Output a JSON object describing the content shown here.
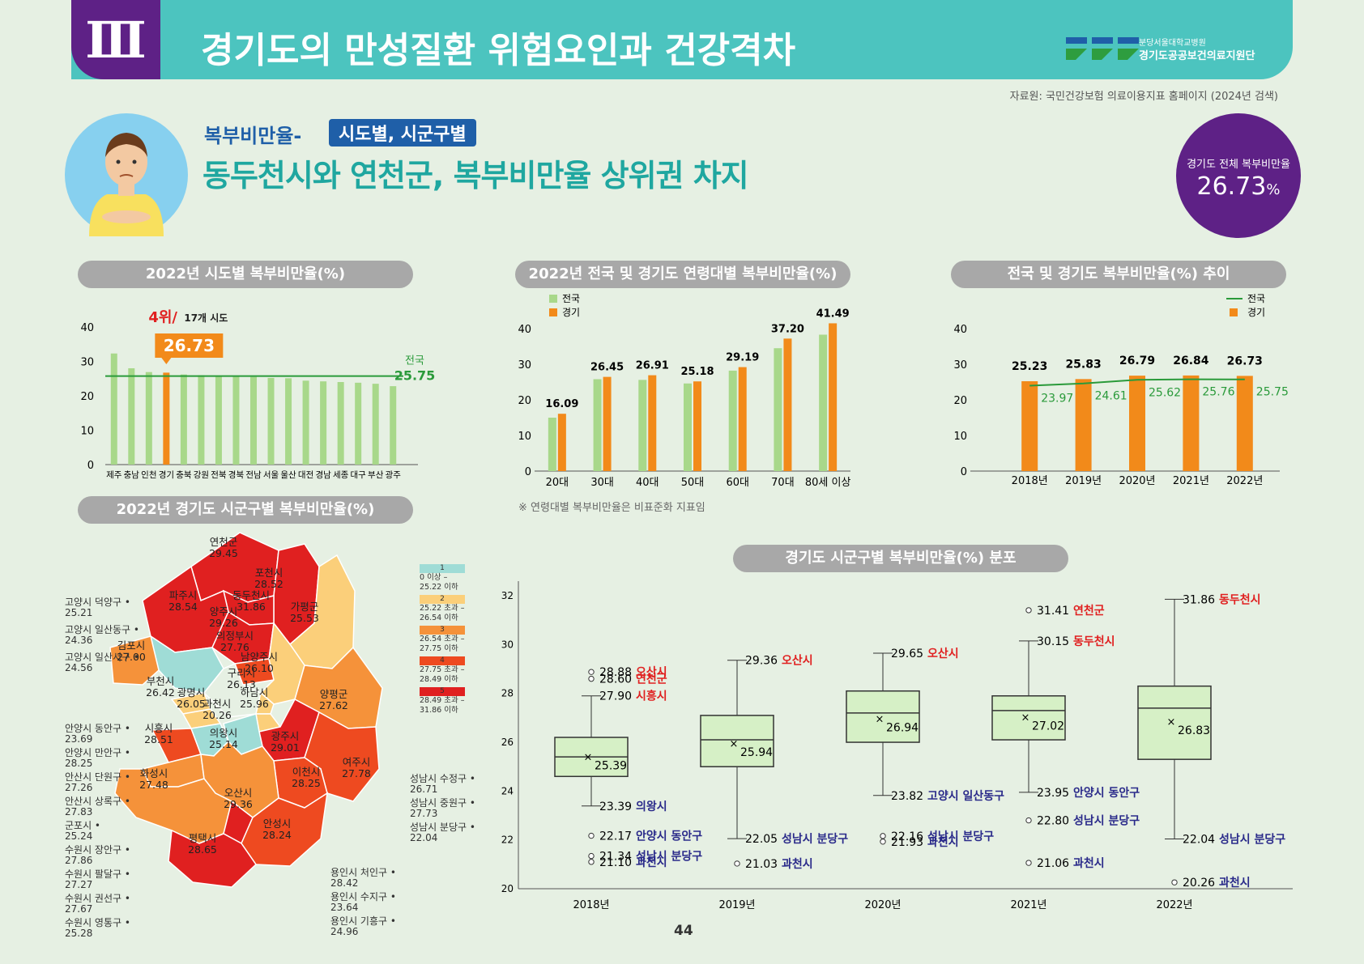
{
  "header": {
    "section": "Ⅲ",
    "title": "경기도의 만성질환 위험요인과 건강격차",
    "logo_line1": "분당서울대학교병원",
    "logo_line2": "경기도공공보건의료지원단"
  },
  "source": "자료원: 국민건강보험 의료이용지표 홈페이지 (2024년 검색)",
  "topic": {
    "label": "복부비만율-",
    "tag": "시도별, 시군구별",
    "headline": "동두천시와 연천군, 복부비만율 상위권 차지"
  },
  "badge": {
    "label": "경기도 전체 복부비만율",
    "value": "26.73",
    "unit": "%"
  },
  "page_number": "44",
  "colors": {
    "teal": "#4cc4bf",
    "purple": "#5e2186",
    "green_bar": "#a8d88a",
    "orange": "#f28a1a",
    "line_green": "#2a9a3a",
    "title_green": "#1fa7a0",
    "red": "#e02020",
    "navy": "#2a2a8a",
    "box_fill": "#d6f0c6"
  },
  "map": {
    "title": "2022년 경기도 시군구별 복부비만율(%)",
    "legend": [
      {
        "n": "1",
        "range": "0 이상 –\n25.22 이하",
        "color": "#9fdcd6"
      },
      {
        "n": "2",
        "range": "25.22 초과 –\n26.54 이하",
        "color": "#fbcf7a"
      },
      {
        "n": "3",
        "range": "26.54 초과 –\n27.75 이하",
        "color": "#f5923a"
      },
      {
        "n": "4",
        "range": "27.75 초과 –\n28.49 이하",
        "color": "#ee4a20"
      },
      {
        "n": "5",
        "range": "28.49 초과 –\n31.86 이하",
        "color": "#e02020"
      }
    ],
    "inner_labels": [
      {
        "name": "연천군",
        "val": "29.45"
      },
      {
        "name": "포천시",
        "val": "28.52"
      },
      {
        "name": "동두천시",
        "val": "31.86"
      },
      {
        "name": "파주시",
        "val": "28.54"
      },
      {
        "name": "양주시",
        "val": "29.26"
      },
      {
        "name": "가평군",
        "val": "25.53"
      },
      {
        "name": "김포시",
        "val": "27.00"
      },
      {
        "name": "의정부시",
        "val": "27.76"
      },
      {
        "name": "남양주시",
        "val": "26.10"
      },
      {
        "name": "부천시",
        "val": "26.42"
      },
      {
        "name": "구리시",
        "val": "26.13"
      },
      {
        "name": "광명시",
        "val": "26.05"
      },
      {
        "name": "하남시",
        "val": "25.96"
      },
      {
        "name": "양평군",
        "val": "27.62"
      },
      {
        "name": "과천시",
        "val": "20.26"
      },
      {
        "name": "시흥시",
        "val": "28.51"
      },
      {
        "name": "의왕시",
        "val": "25.14"
      },
      {
        "name": "광주시",
        "val": "29.01"
      },
      {
        "name": "화성시",
        "val": "27.48"
      },
      {
        "name": "이천시",
        "val": "28.25"
      },
      {
        "name": "여주시",
        "val": "27.78"
      },
      {
        "name": "오산시",
        "val": "29.36"
      },
      {
        "name": "평택시",
        "val": "28.65"
      },
      {
        "name": "안성시",
        "val": "28.24"
      }
    ],
    "left_labels": [
      {
        "name": "고양시 덕양구",
        "val": "25.21"
      },
      {
        "name": "고양시 일산동구",
        "val": "24.36"
      },
      {
        "name": "고양시 일산서구",
        "val": "24.56"
      },
      {
        "name": "안양시 동안구",
        "val": "23.69"
      },
      {
        "name": "안양시 만안구",
        "val": "28.25"
      },
      {
        "name": "안산시 단원구",
        "val": "27.26"
      },
      {
        "name": "안산시 상록구",
        "val": "27.83"
      },
      {
        "name": "군포시",
        "val": "25.24"
      },
      {
        "name": "수원시 장안구",
        "val": "27.86"
      },
      {
        "name": "수원시 팔달구",
        "val": "27.27"
      },
      {
        "name": "수원시 권선구",
        "val": "27.67"
      },
      {
        "name": "수원시 영통구",
        "val": "25.28"
      }
    ],
    "right_labels": [
      {
        "name": "성남시 수정구",
        "val": "26.71"
      },
      {
        "name": "성남시 중원구",
        "val": "27.73"
      },
      {
        "name": "성남시 분당구",
        "val": "22.04"
      }
    ],
    "bottom_labels": [
      {
        "name": "용인시 처인구",
        "val": "28.42"
      },
      {
        "name": "용인시 수지구",
        "val": "23.64"
      },
      {
        "name": "용인시 기흥구",
        "val": "24.96"
      }
    ]
  },
  "chart_data": [
    {
      "type": "bar",
      "title": "2022년 시도별 복부비만율(%)",
      "categories": [
        "제주",
        "충남",
        "인천",
        "경기",
        "충북",
        "강원",
        "전북",
        "경북",
        "전남",
        "서울",
        "울산",
        "대전",
        "경남",
        "세종",
        "대구",
        "부산",
        "광주"
      ],
      "values": [
        32.3,
        28.0,
        26.9,
        26.73,
        26.2,
        26.0,
        25.8,
        25.6,
        25.5,
        25.2,
        25.1,
        24.4,
        24.2,
        24.0,
        23.8,
        23.5,
        22.8
      ],
      "ylim": [
        0,
        40
      ],
      "yticks": [
        0,
        10,
        20,
        30,
        40
      ],
      "highlight": {
        "category": "경기",
        "value": "26.73",
        "rank": "4위/",
        "rank_of": "17개 시도"
      },
      "reference": {
        "label": "전국",
        "value": 25.75,
        "value_label": "25.75"
      }
    },
    {
      "type": "bar",
      "title": "2022년 전국 및 경기도 연령대별 복부비만율(%)",
      "categories": [
        "20대",
        "30대",
        "40대",
        "50대",
        "60대",
        "70대",
        "80세 이상"
      ],
      "series": [
        {
          "name": "전국",
          "values": [
            15.0,
            25.8,
            25.6,
            24.6,
            28.2,
            34.5,
            38.3
          ]
        },
        {
          "name": "경기",
          "values": [
            16.09,
            26.45,
            26.91,
            25.18,
            29.19,
            37.2,
            41.49
          ],
          "labels": [
            "16.09",
            "26.45",
            "26.91",
            "25.18",
            "29.19",
            "37.20",
            "41.49"
          ]
        }
      ],
      "ylim": [
        0,
        40
      ],
      "yticks": [
        0,
        10,
        20,
        30,
        40
      ],
      "note": "※ 연령대별 복부비만율은 비표준화 지표임"
    },
    {
      "type": "bar",
      "title": "전국 및 경기도 복부비만율(%) 추이",
      "categories": [
        "2018년",
        "2019년",
        "2020년",
        "2021년",
        "2022년"
      ],
      "series": [
        {
          "name": "경기",
          "chart": "bar",
          "values": [
            25.23,
            25.83,
            26.79,
            26.84,
            26.73
          ],
          "labels": [
            "25.23",
            "25.83",
            "26.79",
            "26.84",
            "26.73"
          ]
        },
        {
          "name": "전국",
          "chart": "line",
          "values": [
            23.97,
            24.61,
            25.62,
            25.76,
            25.75
          ],
          "labels": [
            "23.97",
            "24.61",
            "25.62",
            "25.76",
            "25.75"
          ]
        }
      ],
      "ylim": [
        0,
        40
      ],
      "yticks": [
        0,
        10,
        20,
        30,
        40
      ]
    },
    {
      "type": "box",
      "title": "경기도 시군구별 복부비만율(%) 분포",
      "categories": [
        "2018년",
        "2019년",
        "2020년",
        "2021년",
        "2022년"
      ],
      "ylim": [
        20,
        32.6
      ],
      "yticks": [
        20,
        22,
        24,
        26,
        28,
        30,
        32
      ],
      "boxes": [
        {
          "q1": 24.6,
          "median": 25.4,
          "q3": 26.2,
          "mean": 25.39,
          "mean_label": "25.39",
          "whisker_hi": 27.9,
          "whisker_lo": 23.39,
          "hi_labels": [
            {
              "v": 28.88,
              "val": "28.88",
              "name": "오산시",
              "tone": "red",
              "outlier": true
            },
            {
              "v": 28.6,
              "val": "28.60",
              "name": "연천군",
              "tone": "red",
              "outlier": true
            },
            {
              "v": 27.9,
              "val": "27.90",
              "name": "시흥시",
              "tone": "red",
              "outlier": false
            }
          ],
          "lo_labels": [
            {
              "v": 23.39,
              "val": "23.39",
              "name": "의왕시",
              "tone": "navy",
              "outlier": false
            },
            {
              "v": 22.17,
              "val": "22.17",
              "name": "안양시 동안구",
              "tone": "navy",
              "outlier": true
            },
            {
              "v": 21.34,
              "val": "21.34",
              "name": "성남시 분당구",
              "tone": "navy",
              "outlier": true
            },
            {
              "v": 21.1,
              "val": "21.10",
              "name": "과천시",
              "tone": "navy",
              "outlier": true
            }
          ]
        },
        {
          "q1": 25.0,
          "median": 26.1,
          "q3": 27.1,
          "mean": 25.94,
          "mean_label": "25.94",
          "whisker_hi": 29.36,
          "whisker_lo": 22.05,
          "hi_labels": [
            {
              "v": 29.36,
              "val": "29.36",
              "name": "오산시",
              "tone": "red",
              "outlier": false
            }
          ],
          "lo_labels": [
            {
              "v": 22.05,
              "val": "22.05",
              "name": "성남시 분당구",
              "tone": "navy",
              "outlier": false
            },
            {
              "v": 21.03,
              "val": "21.03",
              "name": "과천시",
              "tone": "navy",
              "outlier": true
            }
          ]
        },
        {
          "q1": 26.0,
          "median": 27.2,
          "q3": 28.1,
          "mean": 26.94,
          "mean_label": "26.94",
          "whisker_hi": 29.65,
          "whisker_lo": 23.82,
          "hi_labels": [
            {
              "v": 29.65,
              "val": "29.65",
              "name": "오산시",
              "tone": "red",
              "outlier": false
            }
          ],
          "lo_labels": [
            {
              "v": 23.82,
              "val": "23.82",
              "name": "고양시 일산동구",
              "tone": "navy",
              "outlier": false
            },
            {
              "v": 22.16,
              "val": "22.16",
              "name": "성남시 분당구",
              "tone": "navy",
              "outlier": true
            },
            {
              "v": 21.93,
              "val": "21.93",
              "name": "과천시",
              "tone": "navy",
              "outlier": true
            }
          ]
        },
        {
          "q1": 26.1,
          "median": 27.3,
          "q3": 27.9,
          "mean": 27.02,
          "mean_label": "27.02",
          "whisker_hi": 30.15,
          "whisker_lo": 23.95,
          "hi_labels": [
            {
              "v": 31.41,
              "val": "31.41",
              "name": "연천군",
              "tone": "red",
              "outlier": true
            },
            {
              "v": 30.15,
              "val": "30.15",
              "name": "동두천시",
              "tone": "red",
              "outlier": false
            }
          ],
          "lo_labels": [
            {
              "v": 23.95,
              "val": "23.95",
              "name": "안양시 동안구",
              "tone": "navy",
              "outlier": false
            },
            {
              "v": 22.8,
              "val": "22.80",
              "name": "성남시 분당구",
              "tone": "navy",
              "outlier": true
            },
            {
              "v": 21.06,
              "val": "21.06",
              "name": "과천시",
              "tone": "navy",
              "outlier": true
            }
          ]
        },
        {
          "q1": 25.3,
          "median": 27.4,
          "q3": 28.3,
          "mean": 26.83,
          "mean_label": "26.83",
          "whisker_hi": 31.86,
          "whisker_lo": 22.04,
          "hi_labels": [
            {
              "v": 31.86,
              "val": "31.86",
              "name": "동두천시",
              "tone": "red",
              "outlier": false
            }
          ],
          "lo_labels": [
            {
              "v": 22.04,
              "val": "22.04",
              "name": "성남시 분당구",
              "tone": "navy",
              "outlier": false
            },
            {
              "v": 20.26,
              "val": "20.26",
              "name": "과천시",
              "tone": "navy",
              "outlier": true
            }
          ]
        }
      ]
    }
  ]
}
